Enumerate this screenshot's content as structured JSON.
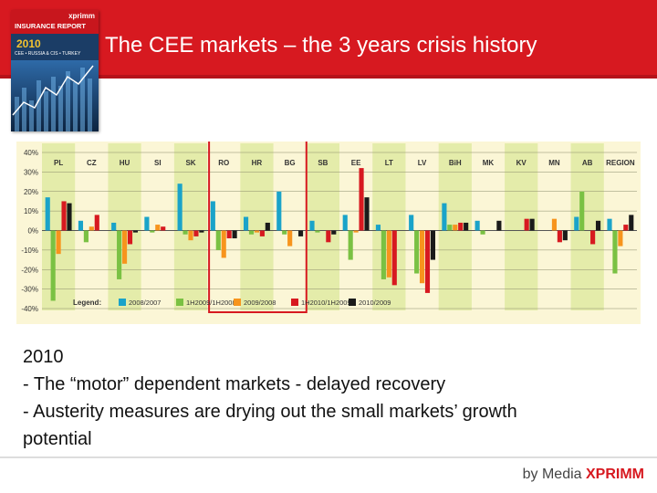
{
  "header": {
    "title": "The CEE markets – the 3 years crisis history",
    "cover": {
      "brand": "xprimm",
      "name": "INSURANCE REPORT",
      "year": "2010",
      "region": "CEE • RUSSIA & CIS • TURKEY"
    }
  },
  "chart_data": {
    "type": "bar",
    "categories": [
      "PL",
      "CZ",
      "HU",
      "SI",
      "SK",
      "RO",
      "HR",
      "BG",
      "SB",
      "EE",
      "LT",
      "LV",
      "BiH",
      "MK",
      "KV",
      "MN",
      "AB",
      "REGION"
    ],
    "yticks": [
      "40%",
      "30%",
      "20%",
      "10%",
      "0%",
      "-10%",
      "-20%",
      "-30%",
      "-40%"
    ],
    "ylim": [
      -40,
      40
    ],
    "legend_label": "Legend:",
    "legend_position": "bottom-left",
    "series": [
      {
        "name": "2008/2007",
        "color": "#1aa3c9",
        "values": [
          17,
          5,
          4,
          7,
          24,
          15,
          7,
          20,
          5,
          8,
          3,
          8,
          14,
          5,
          0,
          0,
          7,
          6
        ]
      },
      {
        "name": "1H2009/1H2008",
        "color": "#7ac143",
        "values": [
          -36,
          -6,
          -25,
          -1,
          -2,
          -10,
          -2,
          -2,
          -1,
          -15,
          -25,
          -22,
          3,
          -2,
          0,
          0,
          20,
          -22
        ]
      },
      {
        "name": "2009/2008",
        "color": "#f7941d",
        "values": [
          -12,
          2,
          -17,
          3,
          -5,
          -14,
          -1,
          -8,
          0,
          -1,
          -24,
          -27,
          3,
          0,
          0,
          6,
          0,
          -8
        ]
      },
      {
        "name": "1H2010/1H2009",
        "color": "#d71920",
        "values": [
          15,
          8,
          -7,
          2,
          -3,
          -4,
          -3,
          0,
          -6,
          32,
          -28,
          -32,
          4,
          0,
          6,
          -6,
          -7,
          3
        ]
      },
      {
        "name": "2010/2009",
        "color": "#1a1a1a",
        "values": [
          14,
          0,
          -1,
          0,
          -1,
          -4,
          4,
          -3,
          -2,
          17,
          0,
          -15,
          4,
          5,
          6,
          -5,
          5,
          8
        ]
      }
    ],
    "highlight": [
      "RO",
      "HR",
      "BG"
    ],
    "grid": true
  },
  "body": {
    "line1": "2010",
    "line2": "- The “motor” dependent markets - delayed recovery",
    "line3": "- Austerity measures are drying out the small markets’ growth",
    "line4": "potential"
  },
  "footer": {
    "prefix": "by Media",
    "brand": "XPRIMM"
  }
}
